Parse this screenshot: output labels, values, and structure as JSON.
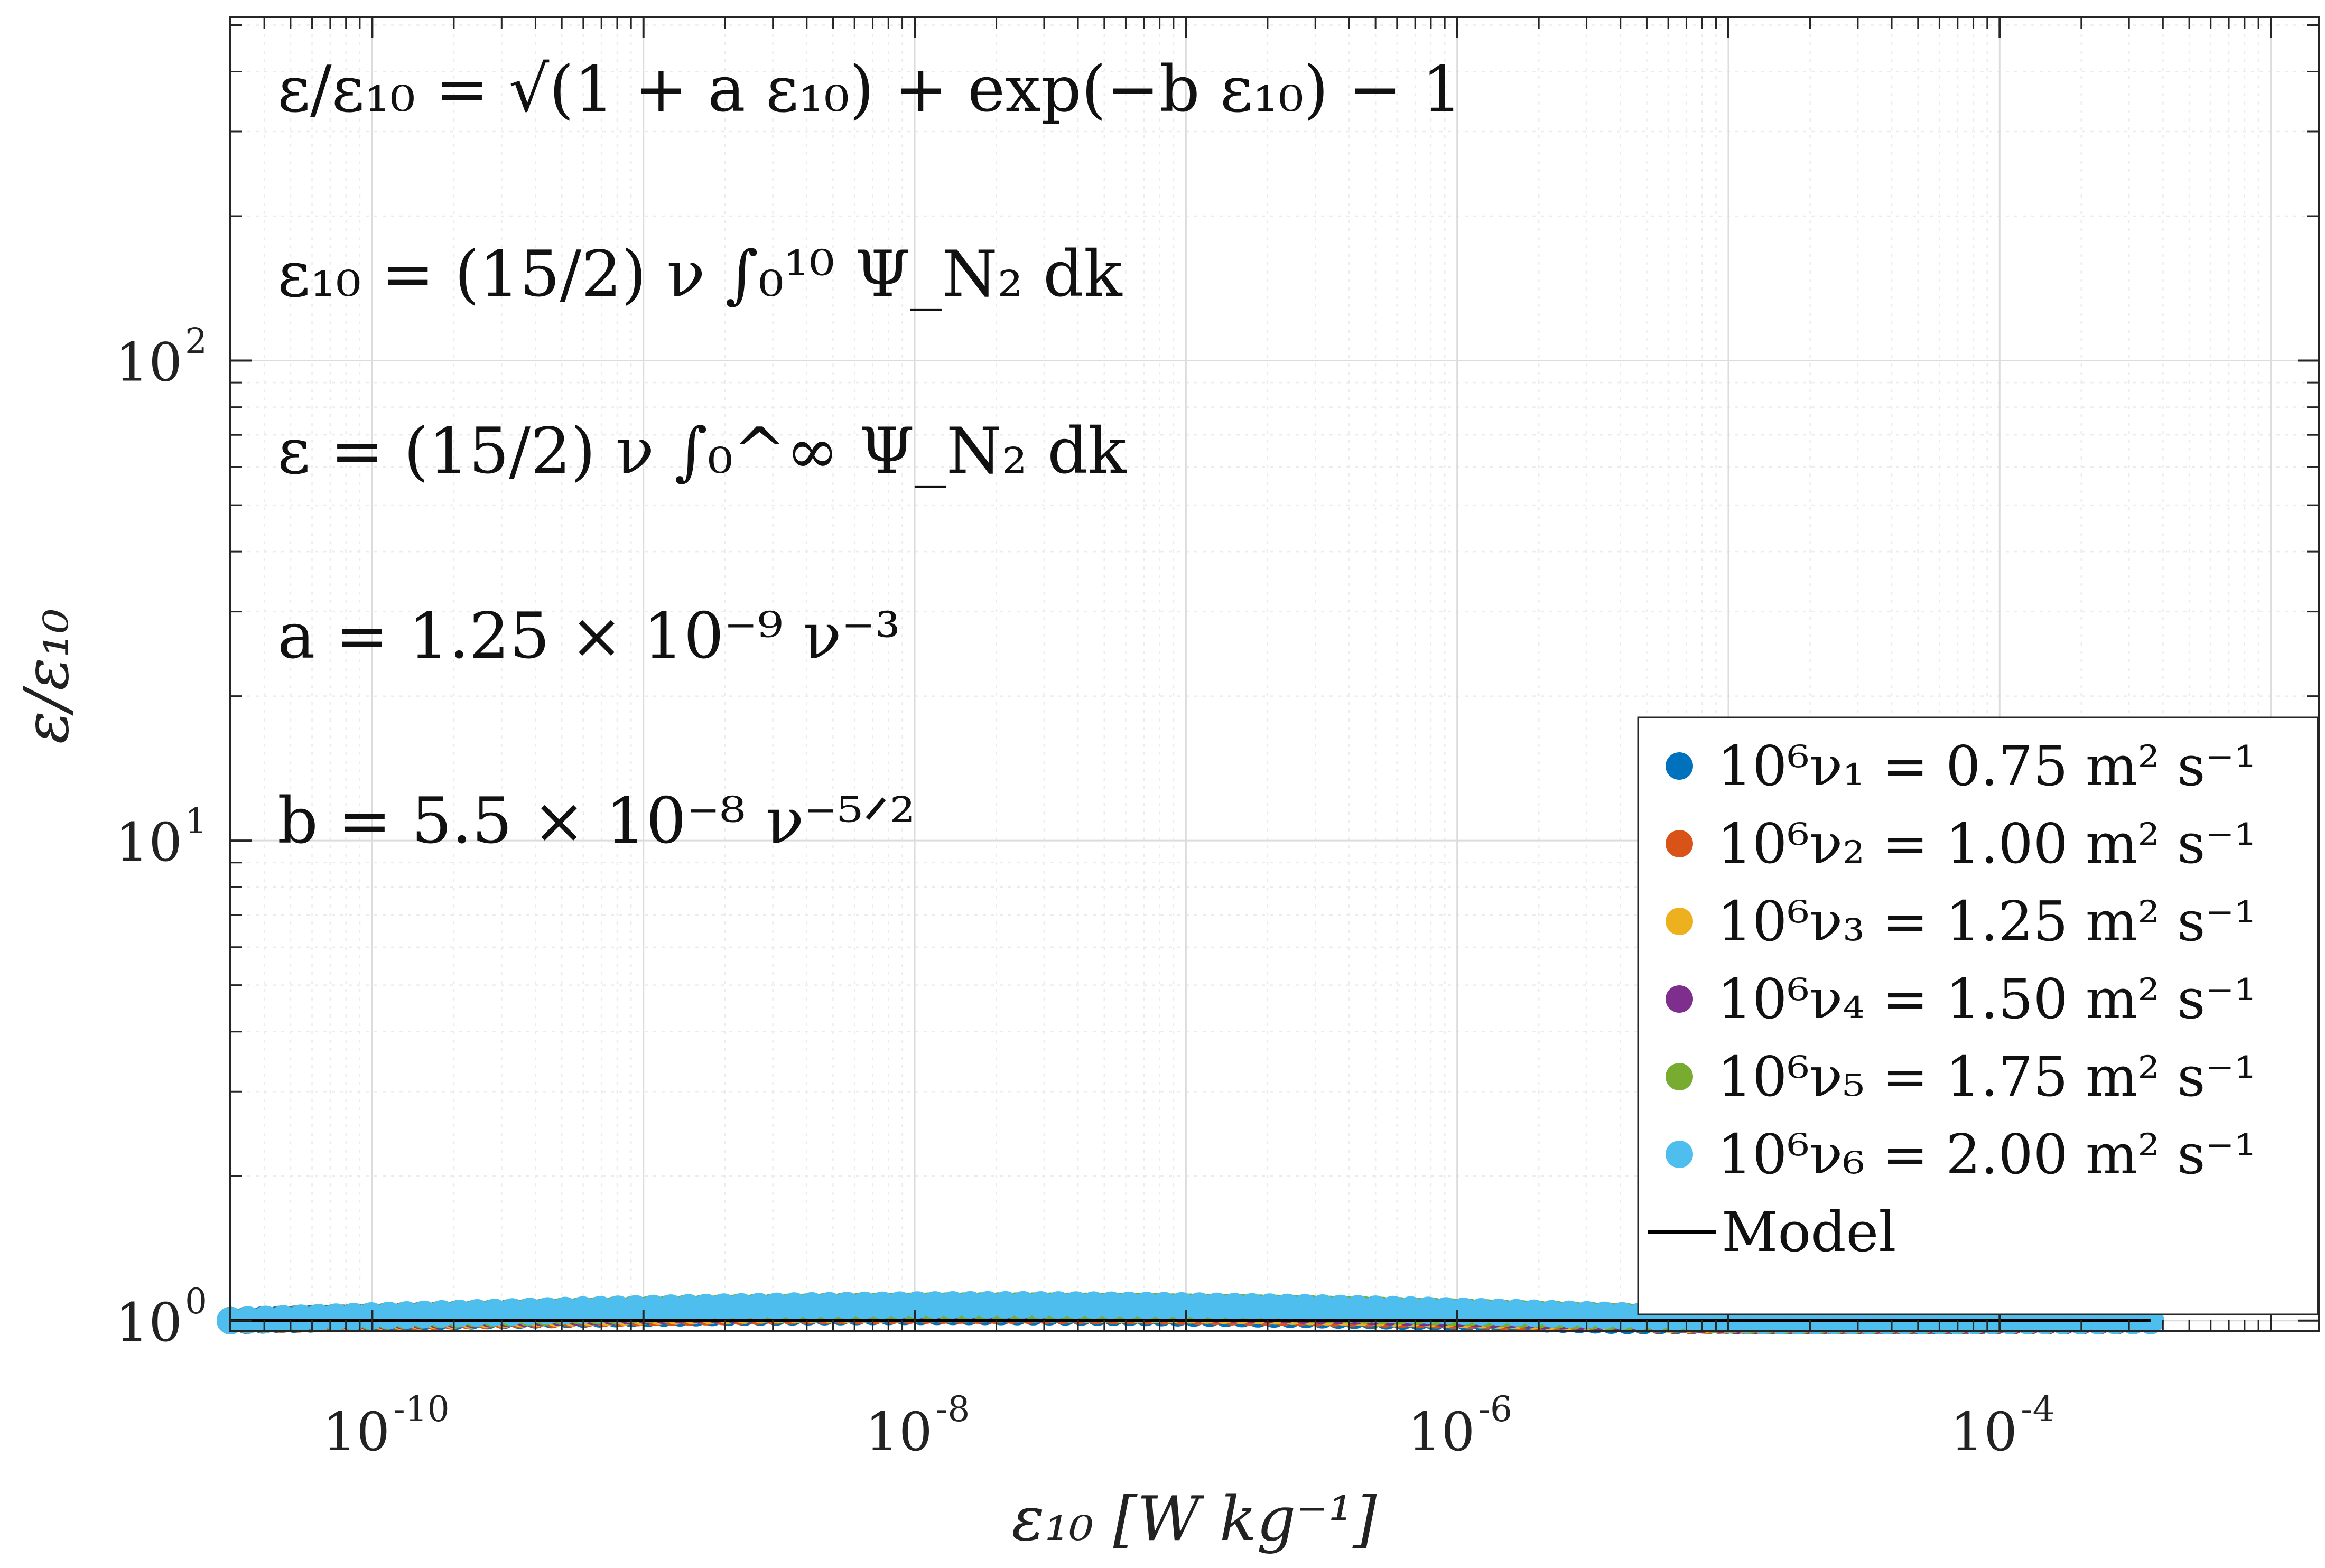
{
  "chart_data": {
    "type": "scatter",
    "title": "",
    "xlabel": "ε₁₀   [W kg⁻¹]",
    "ylabel": "ε/ε₁₀",
    "xscale": "log",
    "yscale": "log",
    "xlim": [
      3e-11,
      0.0015
    ],
    "ylim": [
      0.95,
      520
    ],
    "x_ticks": [
      {
        "base": "10",
        "exp": "-10",
        "value": 1e-10
      },
      {
        "base": "10",
        "exp": "-8",
        "value": 1e-08
      },
      {
        "base": "10",
        "exp": "-6",
        "value": 1e-06
      },
      {
        "base": "10",
        "exp": "-4",
        "value": 0.0001
      }
    ],
    "y_ticks": [
      {
        "base": "10",
        "exp": "0",
        "value": 1
      },
      {
        "base": "10",
        "exp": "1",
        "value": 10
      },
      {
        "base": "10",
        "exp": "2",
        "value": 100
      }
    ],
    "grid": true,
    "legend_position": "bottom-right",
    "model": {
      "a_coeff": 1.25e-09,
      "b_coeff": 5.5e-08
    },
    "series": [
      {
        "name": "10⁶ν₁ = 0.75 m² s⁻¹",
        "nu": 0.75,
        "x_range": [
          3e-11,
          8.5e-05
        ],
        "color": "#0072BD"
      },
      {
        "name": "10⁶ν₂ = 1.00 m² s⁻¹",
        "nu": 1.0,
        "x_range": [
          3e-11,
          0.0002
        ],
        "color": "#D95319"
      },
      {
        "name": "10⁶ν₃ = 1.25 m² s⁻¹",
        "nu": 1.25,
        "x_range": [
          3e-11,
          0.00023
        ],
        "color": "#EDB120"
      },
      {
        "name": "10⁶ν₄ = 1.50 m² s⁻¹",
        "nu": 1.5,
        "x_range": [
          3e-11,
          0.00027
        ],
        "color": "#7E2F8E"
      },
      {
        "name": "10⁶ν₅ = 1.75 m² s⁻¹",
        "nu": 1.75,
        "x_range": [
          3e-11,
          0.00031
        ],
        "color": "#77AC30"
      },
      {
        "name": "10⁶ν₆ = 2.00 m² s⁻¹",
        "nu": 2.0,
        "x_range": [
          3e-11,
          0.00036
        ],
        "color": "#4DBEEE"
      }
    ],
    "model_label": "Model",
    "annotations": [
      "ε/ε₁₀ = √(1 + a ε₁₀) + exp(−b ε₁₀) − 1",
      "ε₁₀ = (15/2) ν ∫₀¹⁰ Ψ_N₂ dk",
      "ε = (15/2) ν ∫₀^∞ Ψ_N₂ dk",
      "a = 1.25 × 10⁻⁹ ν⁻³",
      "b = 5.5 × 10⁻⁸ ν⁻⁵ᐟ²"
    ]
  }
}
